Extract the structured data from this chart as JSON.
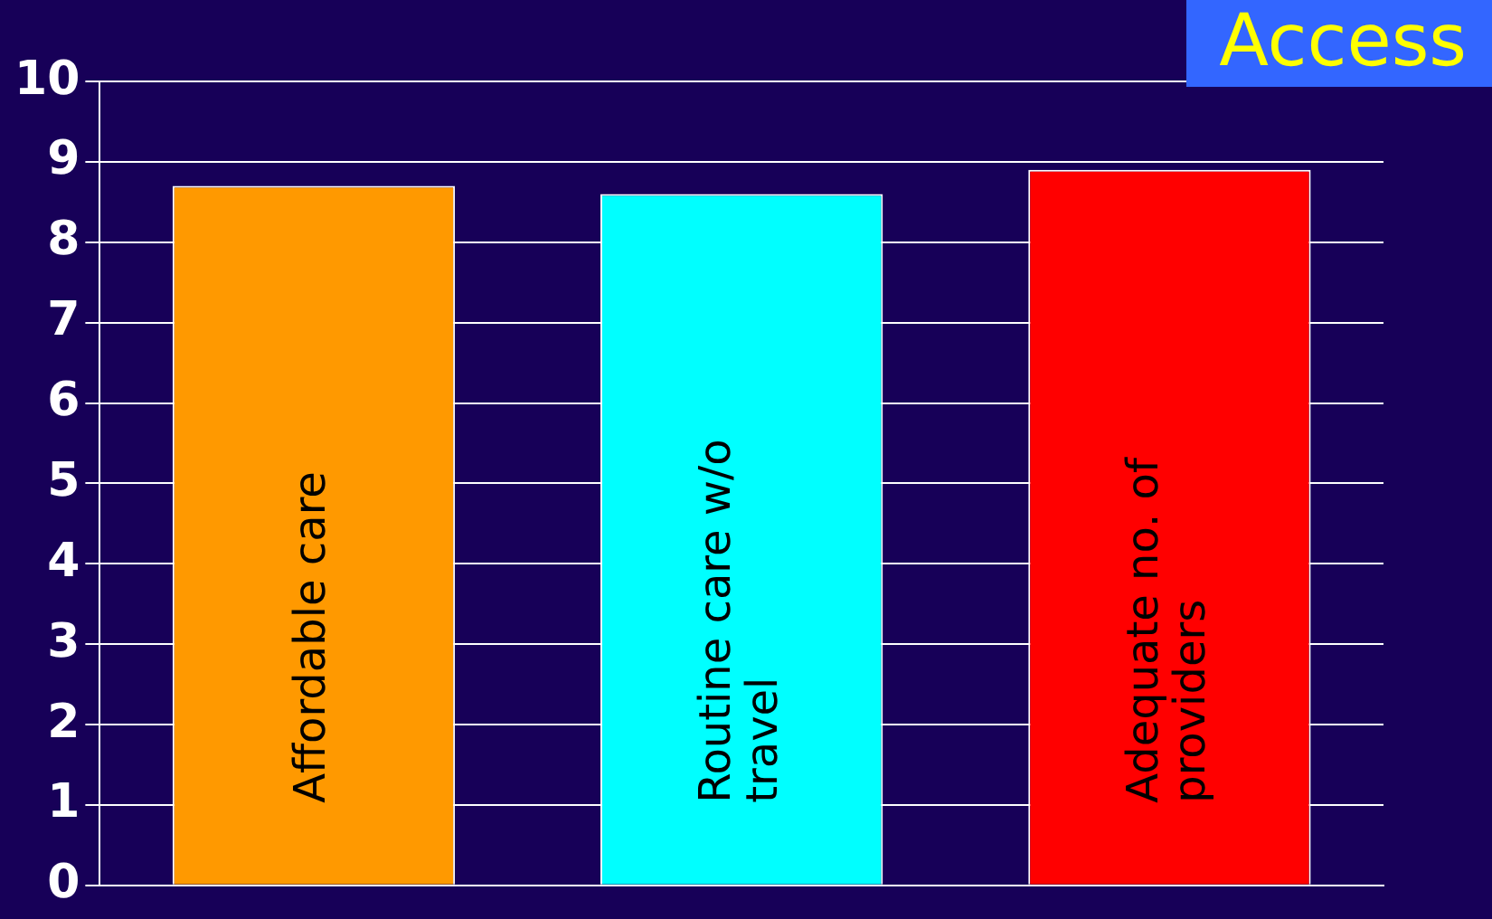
{
  "chart_data": {
    "type": "bar",
    "title": "Access",
    "categories": [
      "Affordable care",
      "Routine care w/o travel",
      "Adequate no. of providers"
    ],
    "values": [
      8.7,
      8.6,
      8.9
    ],
    "colors": [
      "#ff9900",
      "#00ffff",
      "#ff0000"
    ],
    "ylim": [
      0,
      10
    ],
    "yticks": [
      0,
      1,
      2,
      3,
      4,
      5,
      6,
      7,
      8,
      9,
      10
    ],
    "grid": "y",
    "legend": false
  }
}
